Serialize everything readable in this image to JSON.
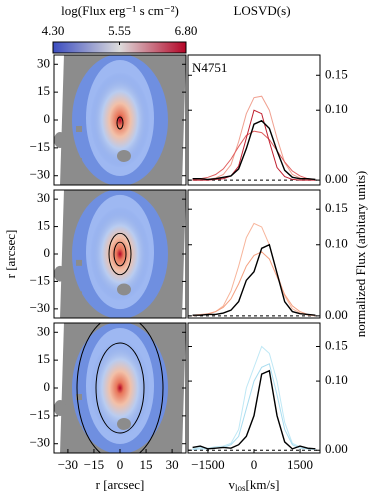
{
  "chart_data": [
    {
      "type": "colorbar",
      "title": "log(Flux erg⁻¹ s cm⁻²)",
      "colors": [
        "#3b4cc0",
        "#dddcdc",
        "#b40426"
      ],
      "clim": [
        4.3,
        6.8
      ],
      "ticks": [
        {
          "value": 4.3,
          "label": "4.30"
        },
        {
          "value": 5.55,
          "label": "5.55"
        },
        {
          "value": 6.8,
          "label": "6.80"
        }
      ]
    },
    {
      "type": "map",
      "xlim": [
        -38,
        38
      ],
      "ylim": [
        -35,
        35
      ],
      "yticks": [
        {
          "value": 30,
          "label": "30"
        },
        {
          "value": 15,
          "label": "15"
        },
        {
          "value": 0,
          "label": "0"
        },
        {
          "value": -15,
          "label": "−15"
        },
        {
          "value": -30,
          "label": "−30"
        }
      ]
    },
    {
      "type": "map",
      "xlim": [
        -38,
        38
      ],
      "ylim": [
        -35,
        35
      ],
      "ylabel": "r [arcsec]",
      "yticks": [
        {
          "value": 30,
          "label": "30"
        },
        {
          "value": 15,
          "label": "15"
        },
        {
          "value": 0,
          "label": "0"
        },
        {
          "value": -15,
          "label": "−15"
        },
        {
          "value": -30,
          "label": "−30"
        }
      ]
    },
    {
      "type": "map",
      "xlim": [
        -38,
        38
      ],
      "ylim": [
        -35,
        35
      ],
      "xlabel": "r [arcsec]",
      "xticks": [
        {
          "value": -30,
          "label": "−30"
        },
        {
          "value": -15,
          "label": "−15"
        },
        {
          "value": 0,
          "label": "0"
        },
        {
          "value": 15,
          "label": "15"
        },
        {
          "value": 30,
          "label": "30"
        }
      ],
      "yticks": [
        {
          "value": 30,
          "label": "30"
        },
        {
          "value": 15,
          "label": "15"
        },
        {
          "value": 0,
          "label": "0"
        },
        {
          "value": -15,
          "label": "−15"
        },
        {
          "value": -30,
          "label": "−30"
        }
      ]
    },
    {
      "type": "line",
      "title": "LOSVD(s)",
      "annotation": "N4751",
      "xlim": [
        -2150,
        2150
      ],
      "ylim": [
        -0.007,
        0.179
      ],
      "yticks": [
        {
          "value": 0,
          "label": "0.00"
        },
        {
          "value": 0.1,
          "label": "0.10"
        },
        {
          "value": 0.15,
          "label": "0.15"
        }
      ],
      "x": [
        -2000,
        -1750,
        -1500,
        -1250,
        -1000,
        -750,
        -500,
        -250,
        0,
        250,
        500,
        750,
        1000,
        1250,
        1500,
        1750,
        2000
      ],
      "series": [
        {
          "color": "#f0a090",
          "values": [
            0,
            0,
            0.001,
            0.003,
            0.008,
            0.022,
            0.055,
            0.095,
            0.118,
            0.12,
            0.1,
            0.06,
            0.025,
            0.008,
            0.003,
            0.001,
            0
          ]
        },
        {
          "color": "#e06060",
          "values": [
            0.001,
            0.002,
            0.004,
            0.008,
            0.016,
            0.03,
            0.048,
            0.064,
            0.07,
            0.068,
            0.058,
            0.042,
            0.026,
            0.013,
            0.006,
            0.002,
            0.001
          ]
        },
        {
          "color": "#c02030",
          "values": [
            0,
            0,
            0,
            0.001,
            0.002,
            0.006,
            0.02,
            0.06,
            0.1,
            0.095,
            0.055,
            0.018,
            0.005,
            0.001,
            0,
            0,
            0
          ]
        },
        {
          "color": "#000000",
          "values": [
            0.002,
            0.002,
            0.001,
            0.002,
            0.004,
            0.006,
            0.016,
            0.045,
            0.08,
            0.085,
            0.074,
            0.042,
            0.014,
            0.004,
            0.002,
            0.002,
            0.001
          ]
        }
      ]
    },
    {
      "type": "line",
      "xlim": [
        -2150,
        2150
      ],
      "ylim": [
        -0.003,
        0.177
      ],
      "ylabel": "normalized Flux (arbitary units)",
      "yticks": [
        {
          "value": 0,
          "label": "0.00"
        },
        {
          "value": 0.1,
          "label": "0.10"
        },
        {
          "value": 0.15,
          "label": "0.15"
        }
      ],
      "x": [
        -2000,
        -1750,
        -1500,
        -1250,
        -1000,
        -750,
        -500,
        -250,
        0,
        250,
        500,
        750,
        1000,
        1250,
        1500,
        1750,
        2000
      ],
      "series": [
        {
          "color": "#f7b49a",
          "values": [
            0,
            0.001,
            0.002,
            0.006,
            0.014,
            0.035,
            0.07,
            0.11,
            0.13,
            0.125,
            0.1,
            0.06,
            0.028,
            0.01,
            0.004,
            0.001,
            0
          ]
        },
        {
          "color": "#f4a080",
          "values": [
            0.001,
            0.002,
            0.003,
            0.006,
            0.012,
            0.024,
            0.045,
            0.07,
            0.085,
            0.09,
            0.08,
            0.055,
            0.03,
            0.014,
            0.006,
            0.002,
            0.001
          ]
        },
        {
          "color": "#000000",
          "values": [
            0.001,
            0.001,
            0.002,
            0.002,
            0.004,
            0.008,
            0.02,
            0.05,
            0.062,
            0.095,
            0.1,
            0.06,
            0.02,
            0.006,
            0.003,
            0.002,
            0.001
          ]
        }
      ]
    },
    {
      "type": "line",
      "xlim": [
        -2150,
        2150
      ],
      "ylim": [
        -0.004,
        0.184
      ],
      "xlabel": {
        "main": "v",
        "sub": "los",
        "rest": "[km/s]"
      },
      "xticks": [
        {
          "value": -1500,
          "label": "−1500"
        },
        {
          "value": 0,
          "label": "0"
        },
        {
          "value": 1500,
          "label": "1500"
        }
      ],
      "yticks": [
        {
          "value": 0,
          "label": "0.00"
        },
        {
          "value": 0.1,
          "label": "0.10"
        },
        {
          "value": 0.15,
          "label": "0.15"
        }
      ],
      "x": [
        -2000,
        -1750,
        -1500,
        -1250,
        -1000,
        -750,
        -500,
        -250,
        0,
        250,
        500,
        750,
        1000,
        1250,
        1500,
        1750,
        2000
      ],
      "series": [
        {
          "color": "#bfe8f5",
          "values": [
            0.002,
            0.004,
            0.003,
            0.005,
            0.006,
            0.01,
            0.03,
            0.09,
            0.12,
            0.15,
            0.14,
            0.1,
            0.04,
            0.01,
            0.005,
            0.003,
            0.002
          ]
        },
        {
          "color": "#a8dcef",
          "values": [
            0.001,
            0.002,
            0.002,
            0.003,
            0.004,
            0.008,
            0.02,
            0.06,
            0.1,
            0.12,
            0.125,
            0.08,
            0.03,
            0.008,
            0.003,
            0.002,
            0.001
          ]
        },
        {
          "color": "#000000",
          "values": [
            0.004,
            0.006,
            0.002,
            0.003,
            0.004,
            0.003,
            0.008,
            0.02,
            0.05,
            0.11,
            0.115,
            0.05,
            0.012,
            0.002,
            0.006,
            0.003,
            0.002
          ]
        }
      ]
    }
  ]
}
